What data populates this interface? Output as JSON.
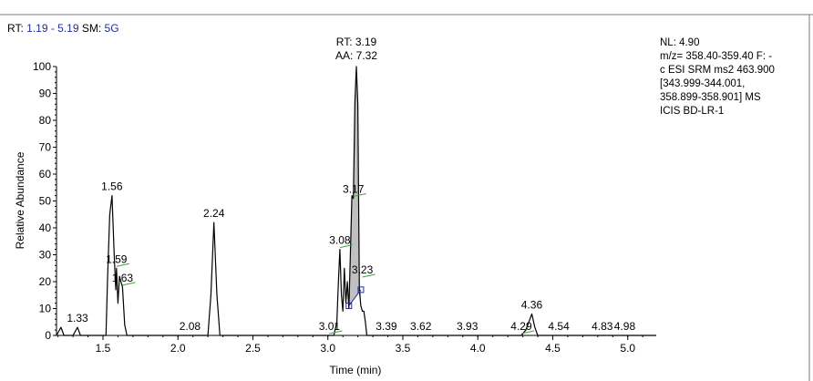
{
  "header": {
    "rt_label": "RT:",
    "rt_range": "1.19 - 5.19",
    "sm_label": "SM:",
    "sm_value": "5G"
  },
  "info_box": {
    "lines": [
      "NL: 4.90",
      "m/z= 358.40-359.40 F: -",
      "c ESI SRM ms2 463.900",
      "[343.999-344.001,",
      "358.899-358.901]  MS",
      "ICIS BD-LR-1"
    ]
  },
  "chart_data": {
    "type": "line",
    "xlabel": "Time (min)",
    "ylabel": "Relative Abundance",
    "xlim": [
      1.19,
      5.19
    ],
    "ylim": [
      0,
      100
    ],
    "x_ticks": [
      "1.5",
      "2.0",
      "2.5",
      "3.0",
      "3.5",
      "4.0",
      "4.5",
      "5.0"
    ],
    "x_tick_values": [
      1.5,
      2.0,
      2.5,
      3.0,
      3.5,
      4.0,
      4.5,
      5.0
    ],
    "y_ticks": [
      "0",
      "10",
      "20",
      "30",
      "40",
      "50",
      "60",
      "70",
      "80",
      "90",
      "100"
    ],
    "y_tick_values": [
      0,
      10,
      20,
      30,
      40,
      50,
      60,
      70,
      80,
      90,
      100
    ],
    "trace": {
      "x": [
        1.19,
        1.22,
        1.24,
        1.27,
        1.3,
        1.32,
        1.33,
        1.35,
        1.38,
        1.41,
        1.44,
        1.47,
        1.5,
        1.52,
        1.53,
        1.545,
        1.56,
        1.575,
        1.585,
        1.59,
        1.6,
        1.61,
        1.62,
        1.63,
        1.645,
        1.66,
        1.68,
        1.72,
        1.8,
        1.9,
        2.0,
        2.08,
        2.15,
        2.2,
        2.22,
        2.24,
        2.26,
        2.28,
        2.32,
        2.4,
        2.6,
        2.8,
        2.95,
        3.01,
        3.04,
        3.06,
        3.07,
        3.08,
        3.09,
        3.1,
        3.11,
        3.12,
        3.13,
        3.14,
        3.15,
        3.16,
        3.17,
        3.18,
        3.19,
        3.2,
        3.21,
        3.22,
        3.23,
        3.24,
        3.25,
        3.26,
        3.28,
        3.32,
        3.39,
        3.5,
        3.62,
        3.8,
        3.93,
        4.1,
        4.29,
        4.32,
        4.34,
        4.36,
        4.38,
        4.4,
        4.5,
        4.54,
        4.7,
        4.83,
        4.98,
        5.19
      ],
      "y": [
        0,
        3,
        0,
        0,
        0,
        2,
        3,
        0,
        0,
        0,
        0,
        0,
        0,
        0,
        20,
        45,
        52,
        30,
        17,
        25,
        12,
        22,
        20,
        18,
        4,
        0,
        0,
        0,
        0,
        0,
        0,
        0,
        0,
        0,
        15,
        42,
        15,
        0,
        0,
        0,
        0,
        0,
        0,
        0,
        0,
        5,
        20,
        32,
        15,
        9,
        25,
        12,
        20,
        10,
        30,
        52,
        51,
        87,
        100,
        86,
        17,
        11,
        9,
        9,
        5,
        0,
        0,
        0,
        0,
        0,
        0,
        0,
        0,
        0,
        0,
        2,
        5,
        8,
        3,
        0,
        0,
        0,
        0,
        0,
        0,
        0
      ]
    },
    "shaded_peak": {
      "x_start": 3.14,
      "x_end": 3.22,
      "marker_left": {
        "x": 3.14,
        "y": 11
      },
      "marker_right": {
        "x": 3.22,
        "y": 17
      }
    },
    "peak_labels": [
      {
        "x": 1.33,
        "y": 3,
        "label": "1.33"
      },
      {
        "x": 1.56,
        "y": 52,
        "label": "1.56"
      },
      {
        "x": 1.59,
        "y": 25,
        "label": "1.59",
        "tick": true
      },
      {
        "x": 1.63,
        "y": 18,
        "label": "1.63",
        "tick": true
      },
      {
        "x": 2.08,
        "y": 0,
        "label": "2.08"
      },
      {
        "x": 2.24,
        "y": 42,
        "label": "2.24"
      },
      {
        "x": 3.01,
        "y": 0,
        "label": "3.01",
        "tick": true
      },
      {
        "x": 3.08,
        "y": 32,
        "label": "3.08",
        "tick": true
      },
      {
        "x": 3.17,
        "y": 51,
        "label": "3.17",
        "tick": true
      },
      {
        "x": 3.23,
        "y": 21,
        "label": "3.23",
        "tick": true
      },
      {
        "x": 3.39,
        "y": 0,
        "label": "3.39"
      },
      {
        "x": 3.62,
        "y": 0,
        "label": "3.62"
      },
      {
        "x": 3.93,
        "y": 0,
        "label": "3.93"
      },
      {
        "x": 4.29,
        "y": 0,
        "label": "4.29",
        "tick": true
      },
      {
        "x": 4.36,
        "y": 8,
        "label": "4.36"
      },
      {
        "x": 4.54,
        "y": 0,
        "label": "4.54"
      },
      {
        "x": 4.83,
        "y": 0,
        "label": "4.83"
      },
      {
        "x": 4.98,
        "y": 0,
        "label": "4.98"
      }
    ],
    "main_peak_annotation": {
      "x": 3.19,
      "line1": "RT: 3.19",
      "line2": "AA: 7.32"
    },
    "colors": {
      "trace": "#000000",
      "fill": "#c0c0c0",
      "marker": "#1f2f9a",
      "tick_line": "#3aa83a",
      "header_value": "#1f2f9a"
    }
  }
}
